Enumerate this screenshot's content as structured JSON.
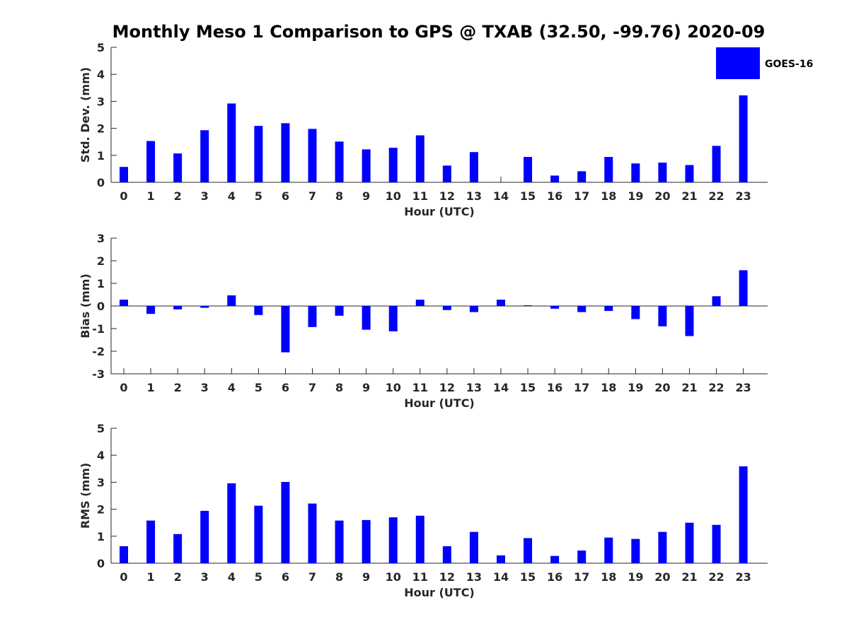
{
  "chart_data": {
    "title": "Monthly Meso 1 Comparison to GPS @ TXAB (32.50, -99.76) 2020-09",
    "legend": {
      "label": "GOES-16",
      "placement": "top-right",
      "color": "#0000ff"
    },
    "bar_color": "#0000ff",
    "subplots": [
      {
        "type": "bar",
        "ylabel": "Std. Dev. (mm)",
        "xlabel": "Hour (UTC)",
        "ylim": [
          0,
          5
        ],
        "yticks": [
          0,
          1,
          2,
          3,
          4,
          5
        ],
        "categories": [
          "0",
          "1",
          "2",
          "3",
          "4",
          "5",
          "6",
          "7",
          "8",
          "9",
          "10",
          "11",
          "12",
          "13",
          "14",
          "15",
          "16",
          "17",
          "18",
          "19",
          "20",
          "21",
          "22",
          "23"
        ],
        "values": [
          0.57,
          1.53,
          1.07,
          1.93,
          2.92,
          2.09,
          2.19,
          1.98,
          1.51,
          1.22,
          1.28,
          1.74,
          0.62,
          1.12,
          0.0,
          0.94,
          0.25,
          0.41,
          0.94,
          0.7,
          0.73,
          0.64,
          1.35,
          3.22
        ]
      },
      {
        "type": "bar",
        "ylabel": "Bias (mm)",
        "xlabel": "Hour (UTC)",
        "ylim": [
          -3,
          3
        ],
        "yticks": [
          -3,
          -2,
          -1,
          0,
          1,
          2,
          3
        ],
        "categories": [
          "0",
          "1",
          "2",
          "3",
          "4",
          "5",
          "6",
          "7",
          "8",
          "9",
          "10",
          "11",
          "12",
          "13",
          "14",
          "15",
          "16",
          "17",
          "18",
          "19",
          "20",
          "21",
          "22",
          "23"
        ],
        "values": [
          0.28,
          -0.35,
          -0.15,
          -0.08,
          0.47,
          -0.4,
          -2.05,
          -0.93,
          -0.43,
          -1.05,
          -1.12,
          0.28,
          -0.18,
          -0.27,
          0.28,
          0.03,
          -0.12,
          -0.27,
          -0.22,
          -0.58,
          -0.9,
          -1.33,
          0.43,
          1.58
        ]
      },
      {
        "type": "bar",
        "ylabel": "RMS (mm)",
        "xlabel": "Hour (UTC)",
        "ylim": [
          0,
          5
        ],
        "yticks": [
          0,
          1,
          2,
          3,
          4,
          5
        ],
        "categories": [
          "0",
          "1",
          "2",
          "3",
          "4",
          "5",
          "6",
          "7",
          "8",
          "9",
          "10",
          "11",
          "12",
          "13",
          "14",
          "15",
          "16",
          "17",
          "18",
          "19",
          "20",
          "21",
          "22",
          "23"
        ],
        "values": [
          0.63,
          1.58,
          1.08,
          1.94,
          2.96,
          2.13,
          3.01,
          2.21,
          1.58,
          1.6,
          1.7,
          1.76,
          0.63,
          1.16,
          0.29,
          0.93,
          0.27,
          0.47,
          0.95,
          0.9,
          1.16,
          1.5,
          1.42,
          3.59
        ]
      }
    ]
  }
}
